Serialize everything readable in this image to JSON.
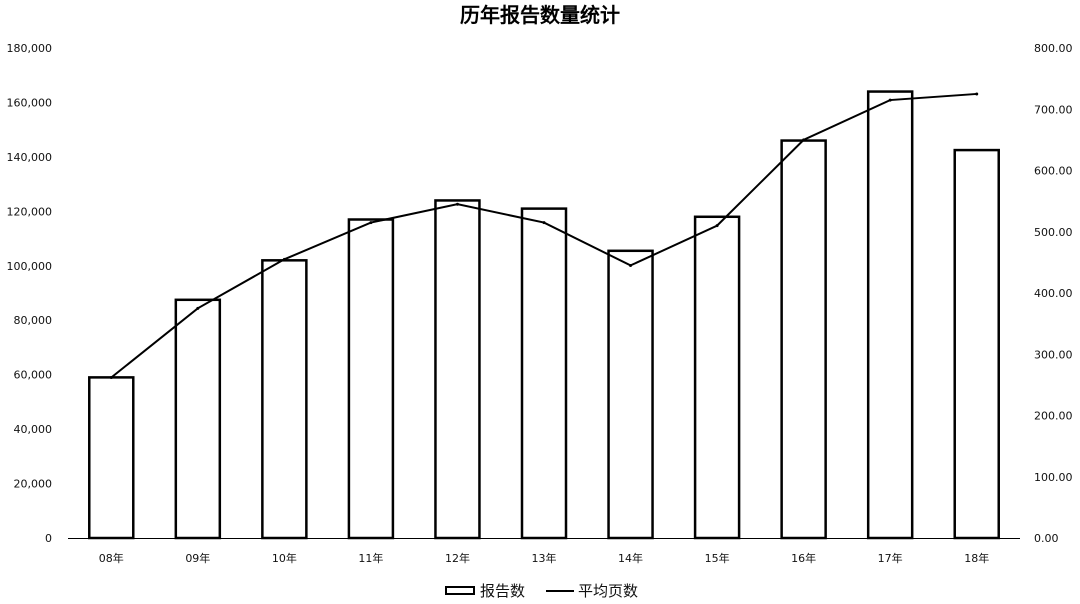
{
  "chart_data": {
    "type": "bar",
    "title": "历年报告数量统计",
    "categories": [
      "08年",
      "09年",
      "10年",
      "11年",
      "12年",
      "13年",
      "14年",
      "15年",
      "16年",
      "17年",
      "18年"
    ],
    "series": [
      {
        "name": "报告数",
        "type": "bar",
        "axis": "left",
        "values": [
          59000,
          87500,
          102000,
          117000,
          124000,
          121000,
          105500,
          118000,
          146000,
          164000,
          142500
        ]
      },
      {
        "name": "平均页数",
        "type": "line",
        "axis": "right",
        "values": [
          262,
          375,
          455,
          515,
          545,
          515,
          445,
          510,
          650,
          715,
          725
        ]
      }
    ],
    "y_left": {
      "ylim": [
        0,
        180000
      ],
      "ticks": [
        "0",
        "20,000",
        "40,000",
        "60,000",
        "80,000",
        "100,000",
        "120,000",
        "140,000",
        "160,000",
        "180,000"
      ]
    },
    "y_right": {
      "ylim": [
        0,
        800
      ],
      "ticks": [
        "0.00",
        "100.00",
        "200.00",
        "300.00",
        "400.00",
        "500.00",
        "600.00",
        "700.00",
        "800.00"
      ]
    },
    "grid": false,
    "legend": "bottom-center",
    "colors": {
      "bar_stroke": "#000000",
      "bar_fill": "#ffffff",
      "line": "#000000"
    }
  }
}
